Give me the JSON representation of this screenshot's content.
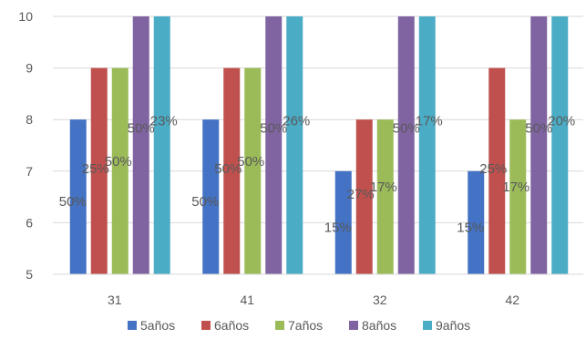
{
  "chart_data": {
    "type": "bar",
    "categories": [
      "31",
      "41",
      "32",
      "42"
    ],
    "ylim": [
      5,
      10
    ],
    "yticks": [
      5,
      6,
      7,
      8,
      9,
      10
    ],
    "grid": true,
    "legend_position": "bottom",
    "series": [
      {
        "name": "5años",
        "color": "#4472C4",
        "values": [
          8,
          8,
          7,
          7
        ],
        "labels": [
          "50%",
          "50%",
          "15%",
          "15%"
        ]
      },
      {
        "name": "6años",
        "color": "#C0504D",
        "values": [
          9,
          9,
          8,
          9
        ],
        "labels": [
          "25%",
          "50%",
          "27%",
          "25%"
        ]
      },
      {
        "name": "7años",
        "color": "#9BBB59",
        "values": [
          9,
          9,
          8,
          8
        ],
        "labels": [
          "50%",
          "50%",
          "17%",
          "17%"
        ]
      },
      {
        "name": "8años",
        "color": "#8064A2",
        "values": [
          10,
          10,
          10,
          10
        ],
        "labels": [
          "50%",
          "50%",
          "50%",
          "50%"
        ]
      },
      {
        "name": "9años",
        "color": "#4BACC6",
        "values": [
          10,
          10,
          10,
          10
        ],
        "labels": [
          "23%",
          "26%",
          "17%",
          "20%"
        ]
      }
    ]
  }
}
